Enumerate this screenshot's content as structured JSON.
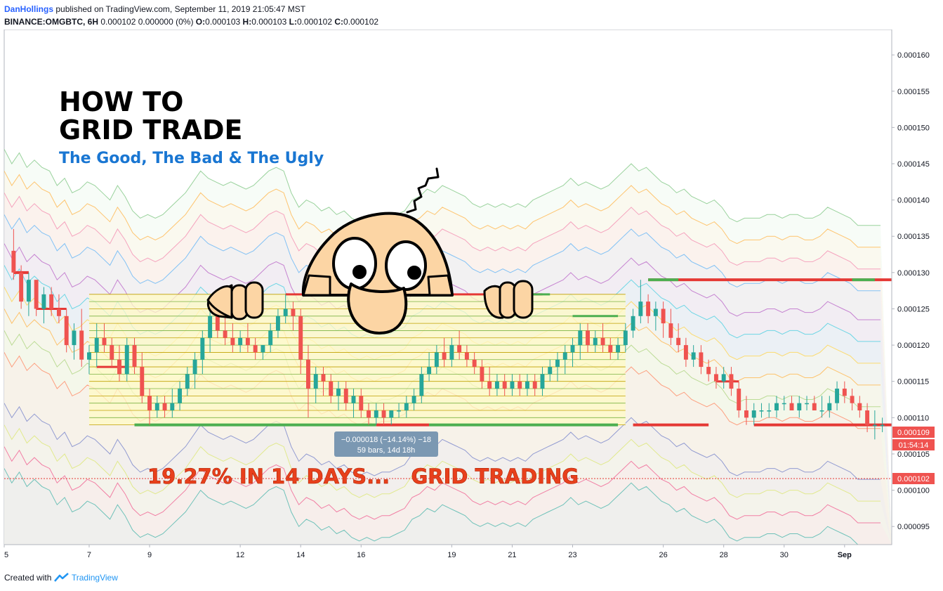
{
  "header": {
    "author": "DanHollings",
    "published": "published on TradingView.com, September 11, 2019 21:05:47 MST",
    "symbol": "BINANCE:OMGBTC, 6H",
    "last": "0.000102 0.000000 (0%)",
    "o_label": "O:",
    "o": "0.000103",
    "h_label": "H:",
    "h": "0.000103",
    "l_label": "L:",
    "l": "0.000102",
    "c_label": "C:",
    "c": "0.000102"
  },
  "annotations": {
    "title_line1": "HOW TO",
    "title_line2": "GRID TRADE",
    "subtitle": "The Good, The Bad & The Ugly",
    "banner": "19.27% IN 14 DAYS...   GRID TRADING",
    "measure_line1": "−0.000018 (−14.14%) −18",
    "measure_line2": "59 bars, 14d 18h"
  },
  "price_axis": {
    "ticks": [
      "0.000160",
      "0.000155",
      "0.000150",
      "0.000145",
      "0.000140",
      "0.000135",
      "0.000130",
      "0.000125",
      "0.000120",
      "0.000115",
      "0.000110",
      "0.000105",
      "0.000100",
      "0.000095"
    ],
    "last_price_label": "0.000109",
    "countdown_label": "01:54:14",
    "crosshair_label": "0.000102"
  },
  "time_axis": {
    "ticks": [
      "5",
      "7",
      "9",
      "12",
      "14",
      "16",
      "19",
      "21",
      "23",
      "26",
      "28",
      "30",
      "Sep"
    ]
  },
  "footer": {
    "created_with": "Created with",
    "brand": "TradingView"
  },
  "colors": {
    "up": "#26a69a",
    "down": "#ef5350",
    "grid_box": "#fff9c4",
    "level_green": "#4caf50",
    "level_red": "#e53935",
    "banner": "#e8401c",
    "subtitle": "#1976d2",
    "face": "#fcd5a4"
  },
  "chart_data": {
    "type": "candlestick",
    "y_range": [
      9.25e-05,
      0.0001635
    ],
    "candles": [
      [
        0.000133,
        0.000136,
        0.000129,
        0.00013
      ],
      [
        0.00013,
        0.000131,
        0.000125,
        0.000126
      ],
      [
        0.000126,
        0.00013,
        0.000124,
        0.000129
      ],
      [
        0.000129,
        0.000129,
        0.000124,
        0.000125
      ],
      [
        0.000125,
        0.000128,
        0.000123,
        0.000127
      ],
      [
        0.000127,
        0.000128,
        0.000124,
        0.000125
      ],
      [
        0.000125,
        0.000127,
        0.000123,
        0.000124
      ],
      [
        0.000124,
        0.000125,
        0.000119,
        0.00012
      ],
      [
        0.00012,
        0.000123,
        0.000118,
        0.000122
      ],
      [
        0.000122,
        0.000125,
        0.000117,
        0.000118
      ],
      [
        0.000118,
        0.00012,
        0.000116,
        0.000119
      ],
      [
        0.000119,
        0.000123,
        0.000117,
        0.000121
      ],
      [
        0.000121,
        0.000123,
        0.000119,
        0.00012
      ],
      [
        0.00012,
        0.000121,
        0.000117,
        0.000118
      ],
      [
        0.000118,
        0.00012,
        0.000115,
        0.000116
      ],
      [
        0.000116,
        0.000121,
        0.000115,
        0.00012
      ],
      [
        0.00012,
        0.000121,
        0.000116,
        0.000117
      ],
      [
        0.000117,
        0.000119,
        0.000112,
        0.000113
      ],
      [
        0.000113,
        0.000114,
        0.000109,
        0.000111
      ],
      [
        0.000111,
        0.000113,
        0.00011,
        0.000112
      ],
      [
        0.000112,
        0.000113,
        0.00011,
        0.000111
      ],
      [
        0.000111,
        0.000114,
        0.00011,
        0.000112
      ],
      [
        0.000112,
        0.000115,
        0.000111,
        0.000114
      ],
      [
        0.000114,
        0.000117,
        0.000113,
        0.000116
      ],
      [
        0.000116,
        0.000119,
        0.000114,
        0.000118
      ],
      [
        0.000118,
        0.000122,
        0.000116,
        0.000121
      ],
      [
        0.000121,
        0.000125,
        0.000119,
        0.000124
      ],
      [
        0.000124,
        0.000127,
        0.000121,
        0.000122
      ],
      [
        0.000122,
        0.000124,
        0.00012,
        0.000121
      ],
      [
        0.000121,
        0.000123,
        0.000119,
        0.00012
      ],
      [
        0.00012,
        0.000122,
        0.000119,
        0.000121
      ],
      [
        0.000121,
        0.000123,
        0.000119,
        0.00012
      ],
      [
        0.00012,
        0.000121,
        0.000118,
        0.000119
      ],
      [
        0.000119,
        0.00012,
        0.000118,
        0.00012
      ],
      [
        0.00012,
        0.000123,
        0.000119,
        0.000122
      ],
      [
        0.000122,
        0.000125,
        0.000121,
        0.000124
      ],
      [
        0.000124,
        0.000127,
        0.000123,
        0.000125
      ],
      [
        0.000125,
        0.000126,
        0.000122,
        0.000124
      ],
      [
        0.000124,
        0.000125,
        0.000116,
        0.000118
      ],
      [
        0.000118,
        0.00012,
        0.00011,
        0.000114
      ],
      [
        0.000114,
        0.000117,
        0.000112,
        0.000116
      ],
      [
        0.000116,
        0.000117,
        0.000113,
        0.000115
      ],
      [
        0.000115,
        0.000116,
        0.000112,
        0.000113
      ],
      [
        0.000113,
        0.000115,
        0.000111,
        0.000114
      ],
      [
        0.000114,
        0.000115,
        0.000111,
        0.000112
      ],
      [
        0.000112,
        0.000114,
        0.00011,
        0.000113
      ],
      [
        0.000113,
        0.000114,
        0.00011,
        0.000111
      ],
      [
        0.000111,
        0.000112,
        0.000109,
        0.00011
      ],
      [
        0.00011,
        0.000112,
        0.000109,
        0.000111
      ],
      [
        0.000111,
        0.000112,
        0.000109,
        0.00011
      ],
      [
        0.00011,
        0.000111,
        0.000109,
        0.000111
      ],
      [
        0.000111,
        0.000112,
        0.00011,
        0.000111
      ],
      [
        0.000111,
        0.000113,
        0.00011,
        0.000112
      ],
      [
        0.000112,
        0.000114,
        0.000111,
        0.000113
      ],
      [
        0.000113,
        0.000117,
        0.000112,
        0.000116
      ],
      [
        0.000116,
        0.000119,
        0.000115,
        0.000117
      ],
      [
        0.000117,
        0.00012,
        0.000116,
        0.000119
      ],
      [
        0.000119,
        0.000121,
        0.000117,
        0.000118
      ],
      [
        0.000118,
        0.000121,
        0.000117,
        0.00012
      ],
      [
        0.00012,
        0.000122,
        0.000118,
        0.000119
      ],
      [
        0.000119,
        0.00012,
        0.000117,
        0.000118
      ],
      [
        0.000118,
        0.000119,
        0.000116,
        0.000117
      ],
      [
        0.000117,
        0.000118,
        0.000114,
        0.000115
      ],
      [
        0.000115,
        0.000117,
        0.000113,
        0.000114
      ],
      [
        0.000114,
        0.000116,
        0.000113,
        0.000115
      ],
      [
        0.000115,
        0.000116,
        0.000113,
        0.000114
      ],
      [
        0.000114,
        0.000116,
        0.000113,
        0.000115
      ],
      [
        0.000115,
        0.000116,
        0.000113,
        0.000114
      ],
      [
        0.000114,
        0.000116,
        0.000113,
        0.000115
      ],
      [
        0.000115,
        0.000116,
        0.000113,
        0.000114
      ],
      [
        0.000114,
        0.000117,
        0.000113,
        0.000116
      ],
      [
        0.000116,
        0.000118,
        0.000115,
        0.000117
      ],
      [
        0.000117,
        0.000119,
        0.000115,
        0.000118
      ],
      [
        0.000118,
        0.00012,
        0.000116,
        0.000119
      ],
      [
        0.000119,
        0.000121,
        0.000117,
        0.00012
      ],
      [
        0.00012,
        0.000123,
        0.000118,
        0.000122
      ],
      [
        0.000122,
        0.000123,
        0.000119,
        0.00012
      ],
      [
        0.00012,
        0.000122,
        0.000119,
        0.000121
      ],
      [
        0.000121,
        0.000123,
        0.000119,
        0.00012
      ],
      [
        0.00012,
        0.000121,
        0.000118,
        0.000119
      ],
      [
        0.000119,
        0.000121,
        0.000118,
        0.00012
      ],
      [
        0.00012,
        0.000123,
        0.000119,
        0.000122
      ],
      [
        0.000122,
        0.000125,
        0.000121,
        0.000124
      ],
      [
        0.000124,
        0.000129,
        0.000123,
        0.000126
      ],
      [
        0.000126,
        0.000127,
        0.000123,
        0.000124
      ],
      [
        0.000124,
        0.000126,
        0.000122,
        0.000125
      ],
      [
        0.000125,
        0.000126,
        0.000121,
        0.000123
      ],
      [
        0.000123,
        0.000125,
        0.00012,
        0.000121
      ],
      [
        0.000121,
        0.000123,
        0.000119,
        0.00012
      ],
      [
        0.00012,
        0.000121,
        0.000117,
        0.000118
      ],
      [
        0.000118,
        0.00012,
        0.000117,
        0.000119
      ],
      [
        0.000119,
        0.00012,
        0.000116,
        0.000117
      ],
      [
        0.000117,
        0.000118,
        0.000115,
        0.000116
      ],
      [
        0.000116,
        0.000117,
        0.000114,
        0.000115
      ],
      [
        0.000115,
        0.000117,
        0.000114,
        0.000116
      ],
      [
        0.000116,
        0.000117,
        0.000113,
        0.000114
      ],
      [
        0.000114,
        0.000115,
        0.00011,
        0.000111
      ],
      [
        0.000111,
        0.000113,
        0.000109,
        0.00011
      ],
      [
        0.00011,
        0.000112,
        0.000109,
        0.000111
      ],
      [
        0.000111,
        0.000112,
        0.00011,
        0.000111
      ],
      [
        0.000111,
        0.000112,
        0.00011,
        0.000111
      ],
      [
        0.000111,
        0.000113,
        0.00011,
        0.000112
      ],
      [
        0.000112,
        0.000113,
        0.000111,
        0.000112
      ],
      [
        0.000112,
        0.000113,
        0.000111,
        0.000111
      ],
      [
        0.000111,
        0.000113,
        0.00011,
        0.000112
      ],
      [
        0.000112,
        0.000113,
        0.000111,
        0.000112
      ],
      [
        0.000112,
        0.000113,
        0.000111,
        0.000111
      ],
      [
        0.000111,
        0.000113,
        0.00011,
        0.000111
      ],
      [
        0.000111,
        0.000113,
        0.00011,
        0.000112
      ],
      [
        0.000112,
        0.000115,
        0.000111,
        0.000114
      ],
      [
        0.000114,
        0.000115,
        0.000112,
        0.000113
      ],
      [
        0.000113,
        0.000114,
        0.000111,
        0.000112
      ],
      [
        0.000112,
        0.000113,
        0.00011,
        0.000111
      ],
      [
        0.000111,
        0.000112,
        0.000108,
        0.000109
      ],
      [
        0.000109,
        0.000111,
        0.000107,
        0.000109
      ],
      [
        0.000109,
        0.00011,
        0.000108,
        0.000109
      ]
    ],
    "grid": {
      "price_low": 0.000109,
      "price_high": 0.000127,
      "levels": 18
    },
    "cloud_levels": [
      0.000141,
      0.000138,
      0.000135,
      0.000132,
      0.000128,
      0.000125,
      0.000122,
      0.000119,
      0.000116,
      0.000113,
      0.000106,
      0.000103,
      0.0001,
      9.7e-05
    ]
  }
}
